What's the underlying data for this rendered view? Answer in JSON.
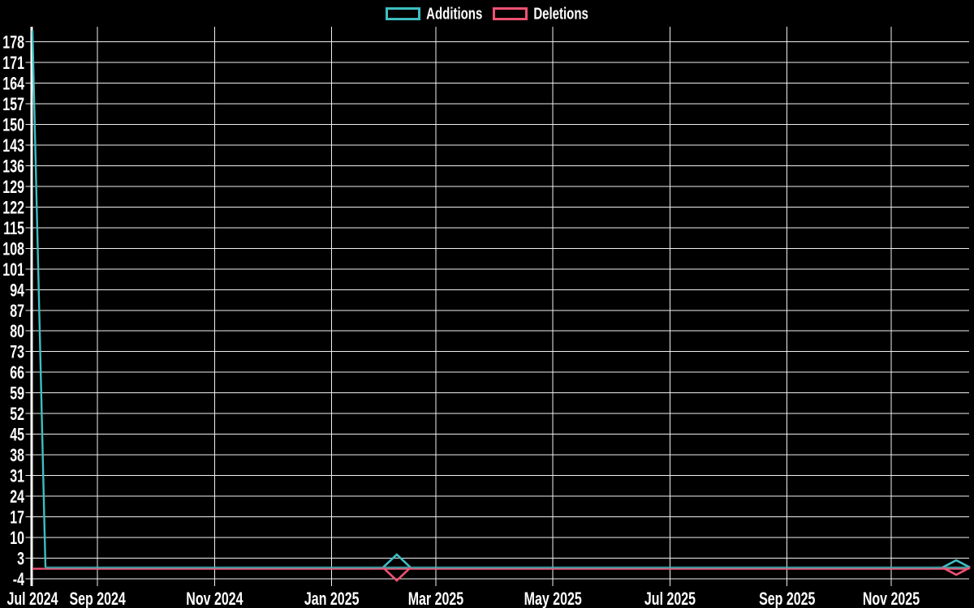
{
  "legend": {
    "items": [
      {
        "label": "Additions"
      },
      {
        "label": "Deletions"
      }
    ]
  },
  "chart_data": {
    "type": "line",
    "title": "",
    "background": "#000000",
    "text_color": "#ffffff",
    "grid_color": "#f0f0f0",
    "grid": true,
    "legend_position": "top",
    "x_axis": {
      "unit": "week",
      "start_date": "2024-07-28",
      "end_date": "2025-12-07",
      "num_weeks": 73,
      "tick_labels": [
        "Jul 2024",
        "Sep 2024",
        "Nov 2024",
        "Jan 2025",
        "Mar 2025",
        "May 2025",
        "Jul 2025",
        "Sep 2025",
        "Nov 2025"
      ],
      "tick_weeks": [
        0,
        5,
        14,
        23,
        31,
        40,
        49,
        58,
        66
      ]
    },
    "y_axis": {
      "min": -4,
      "max": 178,
      "tick_step": 7,
      "ticks": [
        -4,
        3,
        10,
        17,
        24,
        31,
        38,
        45,
        52,
        59,
        66,
        73,
        80,
        87,
        94,
        101,
        108,
        115,
        122,
        129,
        136,
        143,
        150,
        157,
        164,
        171,
        178
      ]
    },
    "series": [
      {
        "name": "Additions",
        "color": "#3ebec2",
        "default_value": 0,
        "values_by_week": {
          "0": 182
        }
      },
      {
        "name": "Deletions",
        "color": "#ef5273",
        "default_value": 0,
        "values_by_week": {}
      }
    ],
    "markers": [
      {
        "week": 28,
        "date": "2025-02-09"
      },
      {
        "week": 71,
        "date": "2025-11-30"
      }
    ]
  }
}
